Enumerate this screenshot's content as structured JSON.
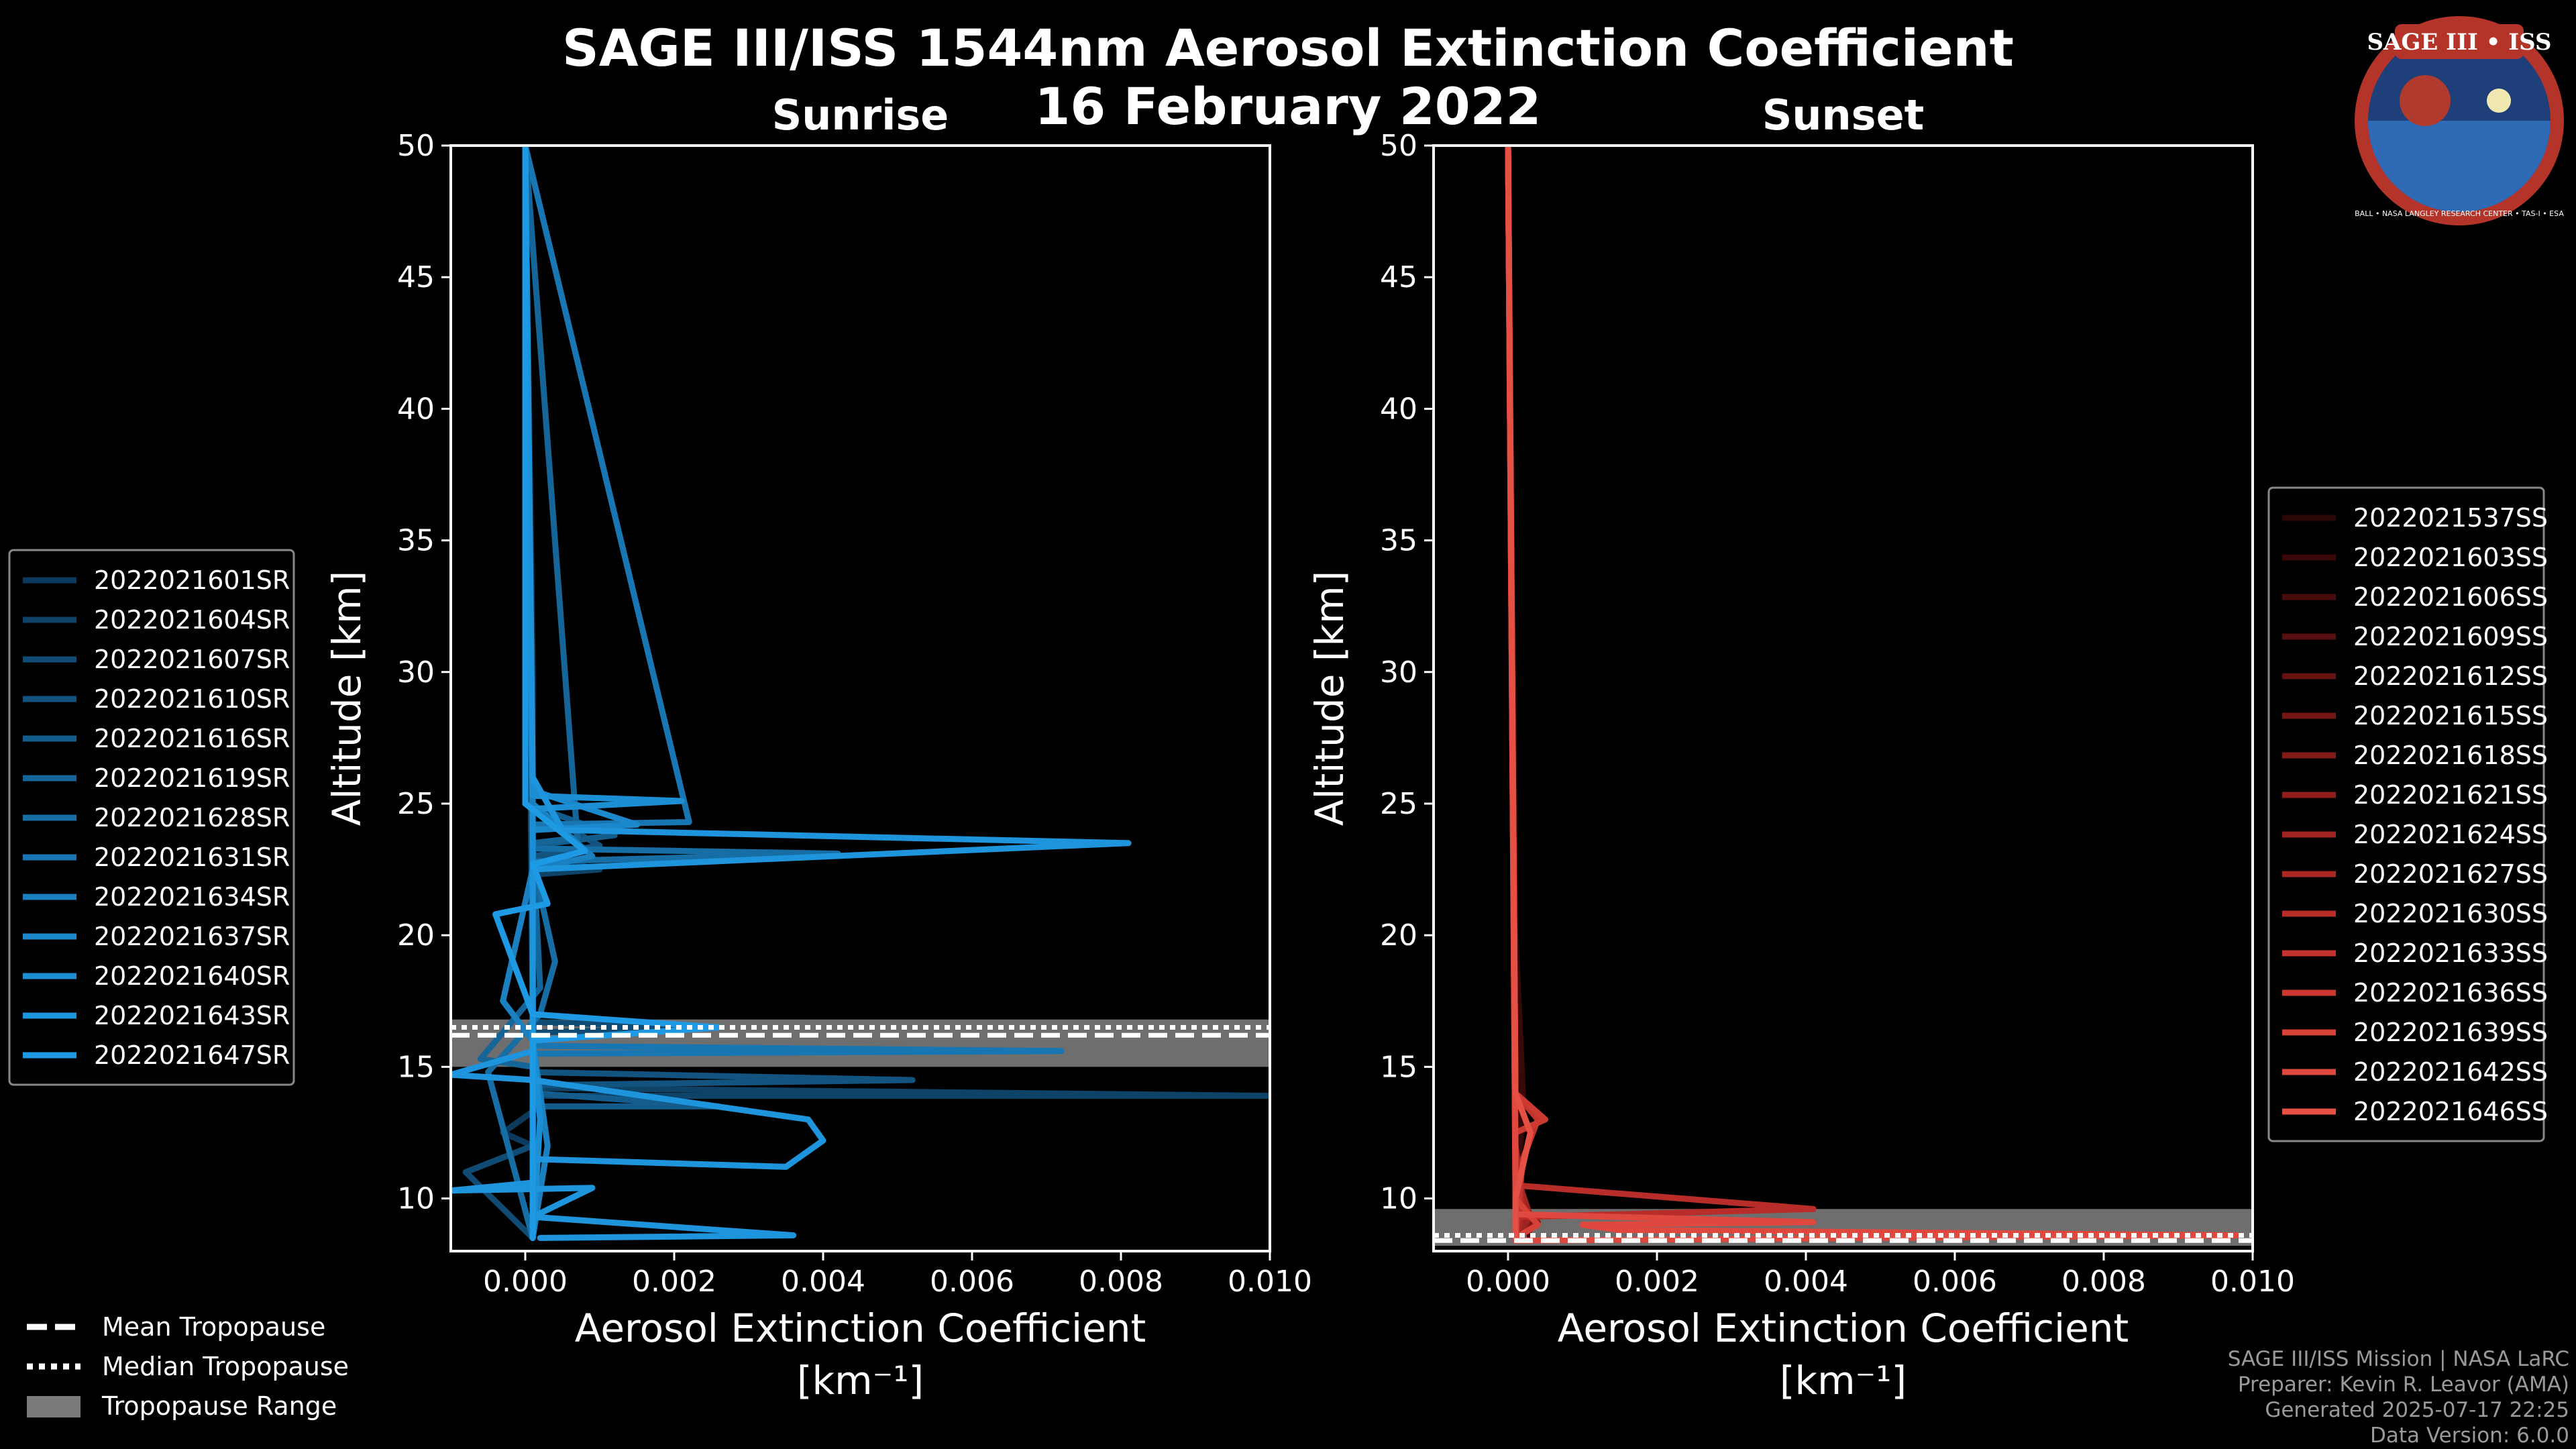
{
  "title": "SAGE III/ISS 1544nm Aerosol Extinction Coefficient",
  "date": "16 February 2022",
  "logo": {
    "name": "SAGE III • ISS",
    "ring_text": "BALL • NASA LANGLEY RESEARCH CENTER • TAS-I • ESA"
  },
  "credits": {
    "mission": "SAGE III/ISS Mission | NASA LaRC",
    "preparer": "Preparer: Kevin R. Leavor (AMA)",
    "generated": "Generated 2025-07-17 22:25",
    "version": "Data Version: 6.0.0"
  },
  "tropopause_legend": {
    "mean": "Mean Tropopause",
    "median": "Median Tropopause",
    "range": "Tropopause Range"
  },
  "chart_data": [
    {
      "type": "line",
      "title": "Sunrise",
      "xlabel": "Aerosol Extinction Coefficient",
      "xunits": "[km⁻¹]",
      "ylabel": "Altitude [km]",
      "xlim": [
        -0.001,
        0.01
      ],
      "ylim": [
        8,
        50
      ],
      "xticks": [
        "0.000",
        "0.002",
        "0.004",
        "0.006",
        "0.008",
        "0.010"
      ],
      "yticks": [
        "10",
        "15",
        "20",
        "25",
        "30",
        "35",
        "40",
        "45",
        "50"
      ],
      "tropopause": {
        "mean": 16.2,
        "median": 16.5,
        "range": [
          15.0,
          16.8
        ]
      },
      "legend_position": "left",
      "series": [
        {
          "name": "2022021601SR",
          "color": "#0d3a5c",
          "points": [
            [
              0.0001,
              8.5
            ],
            [
              0.0001,
              12
            ],
            [
              -0.0003,
              12.5
            ],
            [
              0.0002,
              13.5
            ],
            [
              0.0001,
              16
            ],
            [
              0.0001,
              30
            ],
            [
              0,
              50
            ]
          ]
        },
        {
          "name": "2022021604SR",
          "color": "#0e4266",
          "points": [
            [
              0.0001,
              8.5
            ],
            [
              0.0001,
              13.9
            ],
            [
              0.01,
              13.9
            ],
            [
              0.0001,
              14.2
            ],
            [
              0.0001,
              22.3
            ],
            [
              0.001,
              22.5
            ],
            [
              0.0001,
              23
            ],
            [
              0,
              50
            ]
          ]
        },
        {
          "name": "2022021607SR",
          "color": "#104b73",
          "points": [
            [
              0.0001,
              8.5
            ],
            [
              -0.0008,
              11
            ],
            [
              0.0001,
              12
            ],
            [
              0.0001,
              16.3
            ],
            [
              0.0025,
              16.5
            ],
            [
              0.0001,
              16.7
            ],
            [
              0,
              50
            ]
          ]
        },
        {
          "name": "2022021610SR",
          "color": "#12537f",
          "points": [
            [
              0.0001,
              8.5
            ],
            [
              0.0001,
              14.3
            ],
            [
              0.0052,
              14.5
            ],
            [
              0.0001,
              14.8
            ],
            [
              0.0001,
              23
            ],
            [
              0.001,
              23.4
            ],
            [
              0,
              25
            ],
            [
              0,
              50
            ]
          ]
        },
        {
          "name": "2022021616SR",
          "color": "#135c8c",
          "points": [
            [
              0.0001,
              8.5
            ],
            [
              0.0001,
              13.5
            ],
            [
              0.0026,
              13.5
            ],
            [
              0.0001,
              14
            ],
            [
              0.0001,
              23.4
            ],
            [
              0.0012,
              23.8
            ],
            [
              0,
              25
            ],
            [
              0,
              50
            ]
          ]
        },
        {
          "name": "2022021619SR",
          "color": "#156599",
          "points": [
            [
              0.0001,
              8.5
            ],
            [
              0.0001,
              15
            ],
            [
              -0.0006,
              15.3
            ],
            [
              0.0002,
              18
            ],
            [
              0.0001,
              23.5
            ],
            [
              0.0007,
              23.7
            ],
            [
              0,
              50
            ]
          ]
        },
        {
          "name": "2022021628SR",
          "color": "#166ea5",
          "points": [
            [
              0.0001,
              8.5
            ],
            [
              -0.0005,
              14.8
            ],
            [
              0.0002,
              17
            ],
            [
              0.0004,
              19
            ],
            [
              0.0001,
              22.8
            ],
            [
              0.0042,
              23.1
            ],
            [
              0.0001,
              23.3
            ],
            [
              0,
              50
            ]
          ]
        },
        {
          "name": "2022021631SR",
          "color": "#1877b2",
          "points": [
            [
              0.0001,
              8.5
            ],
            [
              0.0001,
              15.5
            ],
            [
              0.0072,
              15.6
            ],
            [
              0.0001,
              15.8
            ],
            [
              0.0001,
              24.2
            ],
            [
              0.0022,
              24.3
            ],
            [
              0,
              50
            ]
          ]
        },
        {
          "name": "2022021634SR",
          "color": "#1a80bf",
          "points": [
            [
              0.0001,
              8.5
            ],
            [
              0.0003,
              12
            ],
            [
              0.0001,
              16
            ],
            [
              -0.0003,
              17.5
            ],
            [
              0.0001,
              22.5
            ],
            [
              0.0009,
              23
            ],
            [
              0.0001,
              25
            ],
            [
              0,
              50
            ]
          ]
        },
        {
          "name": "2022021637SR",
          "color": "#1b88cb",
          "points": [
            [
              0.0001,
              8.5
            ],
            [
              0.0001,
              14.6
            ],
            [
              0.0001,
              19
            ],
            [
              0.0001,
              24
            ],
            [
              0.0015,
              24.2
            ],
            [
              0.0001,
              25.5
            ],
            [
              0,
              50
            ]
          ]
        },
        {
          "name": "2022021640SR",
          "color": "#1c8fd4",
          "points": [
            [
              0.0001,
              8.5
            ],
            [
              0.0002,
              13
            ],
            [
              0.0001,
              16
            ],
            [
              0.0001,
              24.8
            ],
            [
              0.0021,
              25.1
            ],
            [
              0.0001,
              25.3
            ],
            [
              0,
              50
            ]
          ]
        },
        {
          "name": "2022021643SR",
          "color": "#1d94db",
          "points": [
            [
              0.0002,
              8.5
            ],
            [
              0.0036,
              8.6
            ],
            [
              0.0001,
              9.3
            ],
            [
              0.0009,
              10.4
            ],
            [
              -0.001,
              10.3
            ],
            [
              0.0001,
              10.6
            ],
            [
              0.0001,
              11.5
            ],
            [
              0.0035,
              11.2
            ],
            [
              0.004,
              12.2
            ],
            [
              0.0038,
              13
            ],
            [
              0.0001,
              14.5
            ],
            [
              -0.001,
              14.7
            ],
            [
              0.0001,
              15.6
            ],
            [
              0.0001,
              17
            ],
            [
              0.0001,
              22.5
            ],
            [
              0.0081,
              23.5
            ],
            [
              0.0005,
              24
            ],
            [
              0.0001,
              26
            ],
            [
              0,
              50
            ]
          ]
        },
        {
          "name": "2022021647SR",
          "color": "#1e99e3",
          "points": [
            [
              0.0001,
              8.5
            ],
            [
              0.0001,
              16
            ],
            [
              0.0026,
              16.5
            ],
            [
              0.0001,
              17
            ],
            [
              -0.0004,
              20.8
            ],
            [
              0.0003,
              21.2
            ],
            [
              0.0001,
              22.7
            ],
            [
              0.0008,
              23.2
            ],
            [
              0,
              25
            ],
            [
              0,
              50
            ]
          ]
        }
      ]
    },
    {
      "type": "line",
      "title": "Sunset",
      "xlabel": "Aerosol Extinction Coefficient",
      "xunits": "[km⁻¹]",
      "ylabel": "Altitude [km]",
      "xlim": [
        -0.001,
        0.01
      ],
      "ylim": [
        8,
        50
      ],
      "xticks": [
        "0.000",
        "0.002",
        "0.004",
        "0.006",
        "0.008",
        "0.010"
      ],
      "yticks": [
        "10",
        "15",
        "20",
        "25",
        "30",
        "35",
        "40",
        "45",
        "50"
      ],
      "tropopause": {
        "mean": 8.4,
        "median": 8.6,
        "range": [
          8.2,
          9.6
        ]
      },
      "legend_position": "right",
      "series": [
        {
          "name": "2022021537SS",
          "color": "#2a0606",
          "points": [
            [
              0.0001,
              8.5
            ],
            [
              0.0001,
              10
            ],
            [
              0.0002,
              13
            ],
            [
              0.0001,
              20
            ],
            [
              0,
              50
            ]
          ]
        },
        {
          "name": "2022021603SS",
          "color": "#390909",
          "points": [
            [
              0.0001,
              8.5
            ],
            [
              0.0001,
              10
            ],
            [
              0.0002,
              14
            ],
            [
              0.0001,
              20
            ],
            [
              0,
              50
            ]
          ]
        },
        {
          "name": "2022021606SS",
          "color": "#480c0c",
          "points": [
            [
              0.0003,
              8.5
            ],
            [
              0.0002,
              9.5
            ],
            [
              0.0001,
              12
            ],
            [
              0,
              50
            ]
          ]
        },
        {
          "name": "2022021609SS",
          "color": "#560f0f",
          "points": [
            [
              0.0001,
              8.5
            ],
            [
              0.0003,
              9
            ],
            [
              0.0001,
              11
            ],
            [
              0,
              50
            ]
          ]
        },
        {
          "name": "2022021612SS",
          "color": "#651212",
          "points": [
            [
              0.0001,
              8.4
            ],
            [
              0.0002,
              9.2
            ],
            [
              0.0001,
              11
            ],
            [
              0,
              50
            ]
          ]
        },
        {
          "name": "2022021615SS",
          "color": "#741616",
          "points": [
            [
              0.0001,
              8.5
            ],
            [
              0.0002,
              10
            ],
            [
              0.0001,
              12
            ],
            [
              0,
              50
            ]
          ]
        },
        {
          "name": "2022021618SS",
          "color": "#831a18",
          "points": [
            [
              0.0001,
              8.6
            ],
            [
              0.0004,
              9.1
            ],
            [
              0.0001,
              10
            ],
            [
              0,
              50
            ]
          ]
        },
        {
          "name": "2022021621SS",
          "color": "#911e1b",
          "points": [
            [
              0.0001,
              8.5
            ],
            [
              0.0002,
              9.8
            ],
            [
              0.0001,
              12
            ],
            [
              0,
              50
            ]
          ]
        },
        {
          "name": "2022021624SS",
          "color": "#9f231f",
          "points": [
            [
              0.0001,
              8.5
            ],
            [
              0.0003,
              9.3
            ],
            [
              0.0001,
              11
            ],
            [
              0,
              50
            ]
          ]
        },
        {
          "name": "2022021627SS",
          "color": "#ac2824",
          "points": [
            [
              0.0001,
              8.5
            ],
            [
              0.0002,
              9.5
            ],
            [
              0.0001,
              12
            ],
            [
              0,
              50
            ]
          ]
        },
        {
          "name": "2022021630SS",
          "color": "#b82d29",
          "points": [
            [
              0.0001,
              8.5
            ],
            [
              0.0001,
              10.5
            ],
            [
              0.0041,
              9.6
            ],
            [
              0.0002,
              9.3
            ],
            [
              0.0001,
              11
            ],
            [
              0,
              50
            ]
          ]
        },
        {
          "name": "2022021633SS",
          "color": "#c2342d",
          "points": [
            [
              0.0001,
              8.5
            ],
            [
              0.0002,
              11.5
            ],
            [
              0.0004,
              13
            ],
            [
              0.0001,
              14
            ],
            [
              0,
              50
            ]
          ]
        },
        {
          "name": "2022021636SS",
          "color": "#cc3a32",
          "points": [
            [
              0.0001,
              8.5
            ],
            [
              0.0001,
              12.5
            ],
            [
              0.0005,
              13
            ],
            [
              0.0001,
              14
            ],
            [
              0,
              50
            ]
          ]
        },
        {
          "name": "2022021639SS",
          "color": "#d64138",
          "points": [
            [
              0.0001,
              8.5
            ],
            [
              0.0004,
              9
            ],
            [
              0.0001,
              10
            ],
            [
              0,
              50
            ]
          ]
        },
        {
          "name": "2022021642SS",
          "color": "#df483e",
          "points": [
            [
              0.0001,
              8.4
            ],
            [
              0.0098,
              8.6
            ],
            [
              0.0015,
              8.8
            ],
            [
              0.001,
              9.0
            ],
            [
              0.0041,
              9.1
            ],
            [
              0.0001,
              9.4
            ],
            [
              0.0001,
              11
            ],
            [
              0,
              50
            ]
          ]
        },
        {
          "name": "2022021646SS",
          "color": "#e55044",
          "points": [
            [
              0.0001,
              8.5
            ],
            [
              0.0001,
              10
            ],
            [
              0.0003,
              12.5
            ],
            [
              0.0001,
              14
            ],
            [
              0,
              50
            ]
          ]
        }
      ]
    }
  ]
}
